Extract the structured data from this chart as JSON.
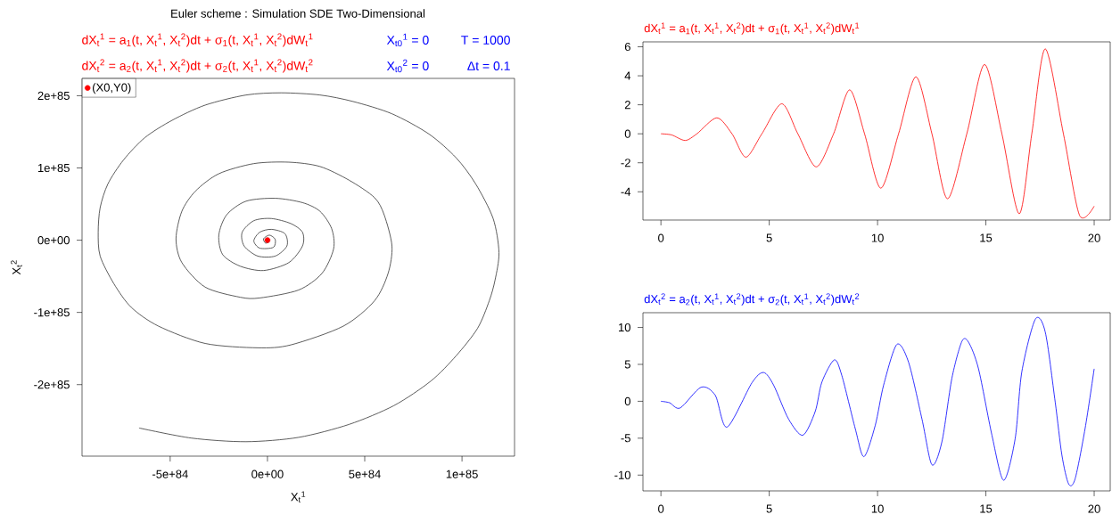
{
  "chart_data": [
    {
      "type": "line",
      "title": "Euler scheme : Simulation SDE Two-Dimensional",
      "annotations": [
        "dX$_{t}$$^{1}$ = a$_{1}$(t, X$_{t}$$^{1}$, X$_{t}$$^{2}$)dt + σ$_{1}$(t, X$_{t}$$^{1}$, X$_{t}$$^{2}$)dW$_{t}$$^{1}$",
        "dX$_{t}$$^{2}$ = a$_{2}$(t, X$_{t}$$^{1}$, X$_{t}$$^{2}$)dt + σ$_{2}$(t, X$_{t}$$^{1}$, X$_{t}$$^{2}$)dW$_{t}$$^{2}$",
        "X$_{t0}$$^{1}$ = 0",
        "X$_{t0}$$^{2}$ = 0",
        "T = 1000",
        "Δt = 0.1"
      ],
      "xlabel": "X$_{t}$$^{1}$",
      "ylabel": "X$_{t}$$^{2}$",
      "xlim": [
        -9.53e+84,
        1.27e+85
      ],
      "ylim": [
        -2.99e+85,
        2.24e+85
      ],
      "xticks": [
        {
          "value": -5e+84,
          "label": "-5e+84"
        },
        {
          "value": 0,
          "label": "0e+00"
        },
        {
          "value": 5e+84,
          "label": "5e+84"
        },
        {
          "value": 1e+85,
          "label": "1e+85"
        }
      ],
      "yticks": [
        {
          "value": -2e+85,
          "label": "-2e+85"
        },
        {
          "value": -1e+85,
          "label": "-1e+85"
        },
        {
          "value": 0,
          "label": "0e+00"
        },
        {
          "value": 1e+85,
          "label": "1e+85"
        },
        {
          "value": 2e+85,
          "label": "2e+85"
        }
      ],
      "legend": "top left",
      "marker": "circle",
      "series": [
        {
          "type": "line",
          "color": "#333333",
          "marker": "none",
          "x": [
            0,
            1e+83,
            -1e+83,
            -2e+83,
            1e+83,
            4e+83,
            3e+83,
            -4e+83,
            -7e+83,
            -4e+83,
            2e+83,
            9e+83,
            1e+84,
            4e+83,
            -5e+83,
            -1.2e+84,
            -1.3e+84,
            -7e+83,
            2e+83,
            1.2e+84,
            1.8e+84,
            1.8e+84,
            1.1e+84,
            -2e+83,
            -1.4e+84,
            -2.3e+84,
            -2.5e+84,
            -2.1e+84,
            -1.1e+84,
            4e+83,
            1.8e+84,
            2.7e+84,
            3.3e+84,
            3.4e+84,
            2.8e+84,
            1.6e+84,
            -4e+83,
            -1.4e+84,
            -3.2e+84,
            -4.4e+84,
            -4.7e+84,
            -4.4e+84,
            -3.7e+84,
            -2.5e+84,
            -7e+83,
            1.1e+84,
            2.7e+84,
            4.2e+84,
            5.5e+84,
            6e+84,
            6.4e+84,
            6.2e+84,
            5.5e+84,
            3.9e+84,
            1.2e+84,
            -5e+83,
            -3.2e+84,
            -5.6e+84,
            -7e+84,
            -7.9e+84,
            -8.6e+84,
            -8.7e+84,
            -8.6e+84,
            -8.2e+84,
            -7.4e+84,
            -6.3e+84,
            -4.9e+84,
            -3.2e+84,
            -1.1e+84,
            7e+83,
            2.7e+84,
            4.4e+84,
            6.4e+84,
            8.3e+84,
            9.7e+84,
            1.07e+85,
            1.16e+85,
            1.19e+85,
            1.17e+85,
            1.14e+85,
            1.08e+85,
            9.7e+84,
            8.4e+84,
            6.5e+84,
            4.2e+84,
            1.6e+84,
            -1.1e+84,
            -3.9e+84,
            -6.6e+84
          ],
          "values": [
            0,
            -2e+83,
            -4e+83,
            2e+83,
            7e+83,
            1e+83,
            -1e+84,
            -1.1e+84,
            -1e+83,
            1.1e+84,
            1.5e+84,
            9e+83,
            -8e+83,
            -2.2e+84,
            -2.2e+84,
            -8e+83,
            1.1e+84,
            2.7e+84,
            3e+84,
            2.3e+84,
            1.1e+84,
            -8e+83,
            -3.1e+84,
            -4.2e+84,
            -3.6e+84,
            -2e+84,
            7e+83,
            3.5e+84,
            5.4e+84,
            5.8e+84,
            5.2e+84,
            4e+84,
            1.6e+84,
            -1.2e+84,
            -4.6e+84,
            -6.9e+84,
            -8e+84,
            -7.9e+84,
            -6.5e+84,
            -3.1e+84,
            2e+83,
            4e+84,
            6.8e+84,
            9.2e+84,
            1.06e+85,
            1.08e+85,
            1.02e+85,
            8.3e+84,
            5.9e+84,
            3.5e+84,
            -8e+83,
            -4.6e+84,
            -8.4e+84,
            -1.19e+85,
            -1.45e+85,
            -1.49e+85,
            -1.43e+85,
            -1.19e+85,
            -9.3e+84,
            -6e+84,
            -2.2e+84,
            1.1e+84,
            4.5e+84,
            7.8e+84,
            1.11e+85,
            1.42e+85,
            1.66e+85,
            1.87e+85,
            2.01e+85,
            2.04e+85,
            2.01e+85,
            1.92e+85,
            1.75e+85,
            1.47e+85,
            1.14e+85,
            7.8e+84,
            3e+84,
            -1.7e+84,
            -5.5e+84,
            -8.4e+84,
            -1.22e+85,
            -1.6e+85,
            -1.95e+85,
            -2.29e+85,
            -2.55e+85,
            -2.73e+85,
            -2.79e+85,
            -2.74e+85,
            -2.6e+85
          ]
        },
        {
          "type": "scatter",
          "name": "(X0,Y0)",
          "color": "#ff0000",
          "x": [
            0
          ],
          "values": [
            0
          ]
        }
      ]
    },
    {
      "type": "line",
      "title": "dX$_{t}$$^{1}$ = a$_{1}$(t, X$_{t}$$^{1}$, X$_{t}$$^{2}$)dt + σ$_{1}$(t, X$_{t}$$^{1}$, X$_{t}$$^{2}$)dW$_{t}$$^{1}$",
      "xlim": [
        -0.83,
        20.74
      ],
      "ylim": [
        -5.95,
        6.34
      ],
      "xticks": [
        0,
        5,
        10,
        15,
        20
      ],
      "yticks": [
        -4,
        -2,
        0,
        2,
        4,
        6
      ],
      "x": [
        0,
        0.5,
        1.12,
        1.66,
        2.58,
        3.28,
        3.92,
        4.66,
        5.58,
        6.32,
        7.17,
        7.97,
        8.71,
        9.4,
        10.15,
        10.97,
        11.77,
        12.51,
        13.23,
        14.12,
        14.94,
        15.74,
        16.54,
        17.12,
        17.74,
        18.58,
        19.32,
        20
      ],
      "series": [
        {
          "color": "#ff0000",
          "values": [
            0,
            -0.08,
            -0.46,
            0,
            1.1,
            0,
            -1.61,
            0,
            2.07,
            0,
            -2.28,
            0,
            3.03,
            0,
            -3.75,
            0,
            3.93,
            0,
            -4.48,
            0,
            4.78,
            0,
            -5.52,
            0,
            5.86,
            0,
            -5.61,
            -4.99
          ]
        }
      ]
    },
    {
      "type": "line",
      "title": "dX$_{t}$$^{2}$ = a$_{2}$(t, X$_{t}$$^{1}$, X$_{t}$$^{2}$)dt + σ$_{2}$(t, X$_{t}$$^{1}$, X$_{t}$$^{2}$)dW$_{t}$$^{2}$",
      "xlim": [
        -0.83,
        20.74
      ],
      "ylim": [
        -12.14,
        12.0
      ],
      "xticks": [
        0,
        5,
        10,
        15,
        20
      ],
      "yticks": [
        -10,
        -5,
        0,
        5,
        10
      ],
      "x": [
        0,
        0.4,
        0.89,
        1.85,
        2.51,
        3.05,
        4.2,
        4.74,
        5.2,
        5.89,
        6.55,
        7.12,
        7.43,
        8.0,
        8.35,
        8.97,
        9.37,
        9.89,
        10.28,
        10.89,
        11.43,
        12.05,
        12.51,
        12.97,
        13.43,
        13.89,
        14.2,
        14.66,
        15.28,
        15.82,
        16.35,
        16.66,
        17.28,
        17.74,
        18.2,
        18.51,
        18.82,
        19.12,
        19.58,
        20
      ],
      "series": [
        {
          "color": "#0000ff",
          "values": [
            0,
            -0.2,
            -0.9,
            1.9,
            0.8,
            -3.5,
            2.5,
            3.9,
            2.2,
            -2.4,
            -4.6,
            -1.4,
            2.6,
            5.6,
            3.5,
            -3.7,
            -7.5,
            -3.3,
            2.2,
            7.7,
            5.3,
            -2.4,
            -8.6,
            -5.5,
            3.1,
            8.1,
            8.0,
            4.4,
            -4.6,
            -10.7,
            -5.1,
            4.0,
            11.1,
            9.4,
            -0.1,
            -7.3,
            -11.2,
            -10.5,
            -3.7,
            4.4
          ]
        }
      ]
    }
  ]
}
